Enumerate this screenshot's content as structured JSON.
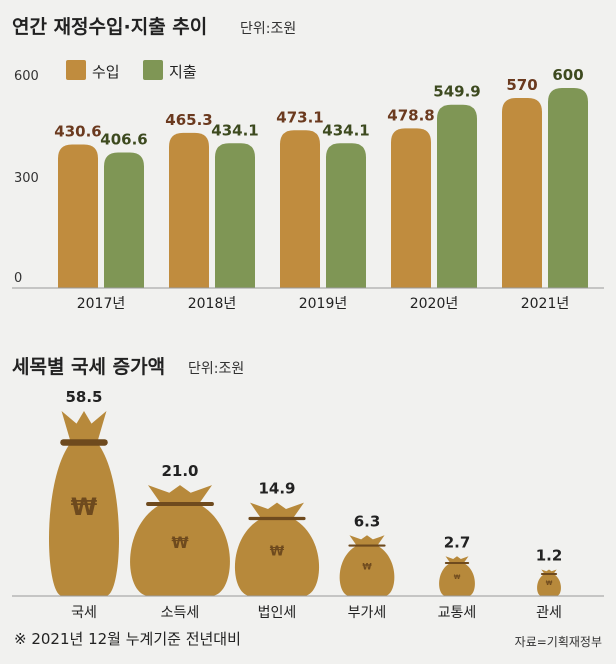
{
  "colors": {
    "revenue": "#c08c3e",
    "expense": "#7f9655",
    "revenue_label": "#6b3a1f",
    "expense_label": "#3d4a1f",
    "bag": "#b7893b",
    "bag_band": "#6e4a1e",
    "won": "#6e4a1e",
    "axis": "#999999"
  },
  "chart_data": [
    {
      "type": "bar",
      "title": "연간 재정수입·지출 추이",
      "unit": "단위:조원",
      "categories": [
        "2017년",
        "2018년",
        "2019년",
        "2020년",
        "2021년"
      ],
      "series": [
        {
          "name": "수입",
          "values": [
            430.6,
            465.3,
            473.1,
            478.8,
            570
          ],
          "labels": [
            "430.6",
            "465.3",
            "473.1",
            "478.8",
            "570"
          ]
        },
        {
          "name": "지출",
          "values": [
            406.6,
            434.1,
            434.1,
            549.9,
            600
          ],
          "labels": [
            "406.6",
            "434.1",
            "434.1",
            "549.9",
            "600"
          ]
        }
      ],
      "yticks": [
        "600",
        "300",
        "0"
      ],
      "ylim": [
        0,
        640
      ],
      "legend": "top-left"
    },
    {
      "type": "bar",
      "title": "세목별 국세 증가액",
      "unit": "단위:조원",
      "categories": [
        "국세",
        "소득세",
        "법인세",
        "부가세",
        "교통세",
        "관세"
      ],
      "values": [
        58.5,
        21.0,
        14.9,
        6.3,
        2.7,
        1.2
      ],
      "labels": [
        "58.5",
        "21.0",
        "14.9",
        "6.3",
        "2.7",
        "1.2"
      ],
      "mark": "money-bag",
      "currency_symbol": "₩"
    }
  ],
  "footnote": "※ 2021년 12월 누계기준 전년대비",
  "source": "자료=기획재정부"
}
